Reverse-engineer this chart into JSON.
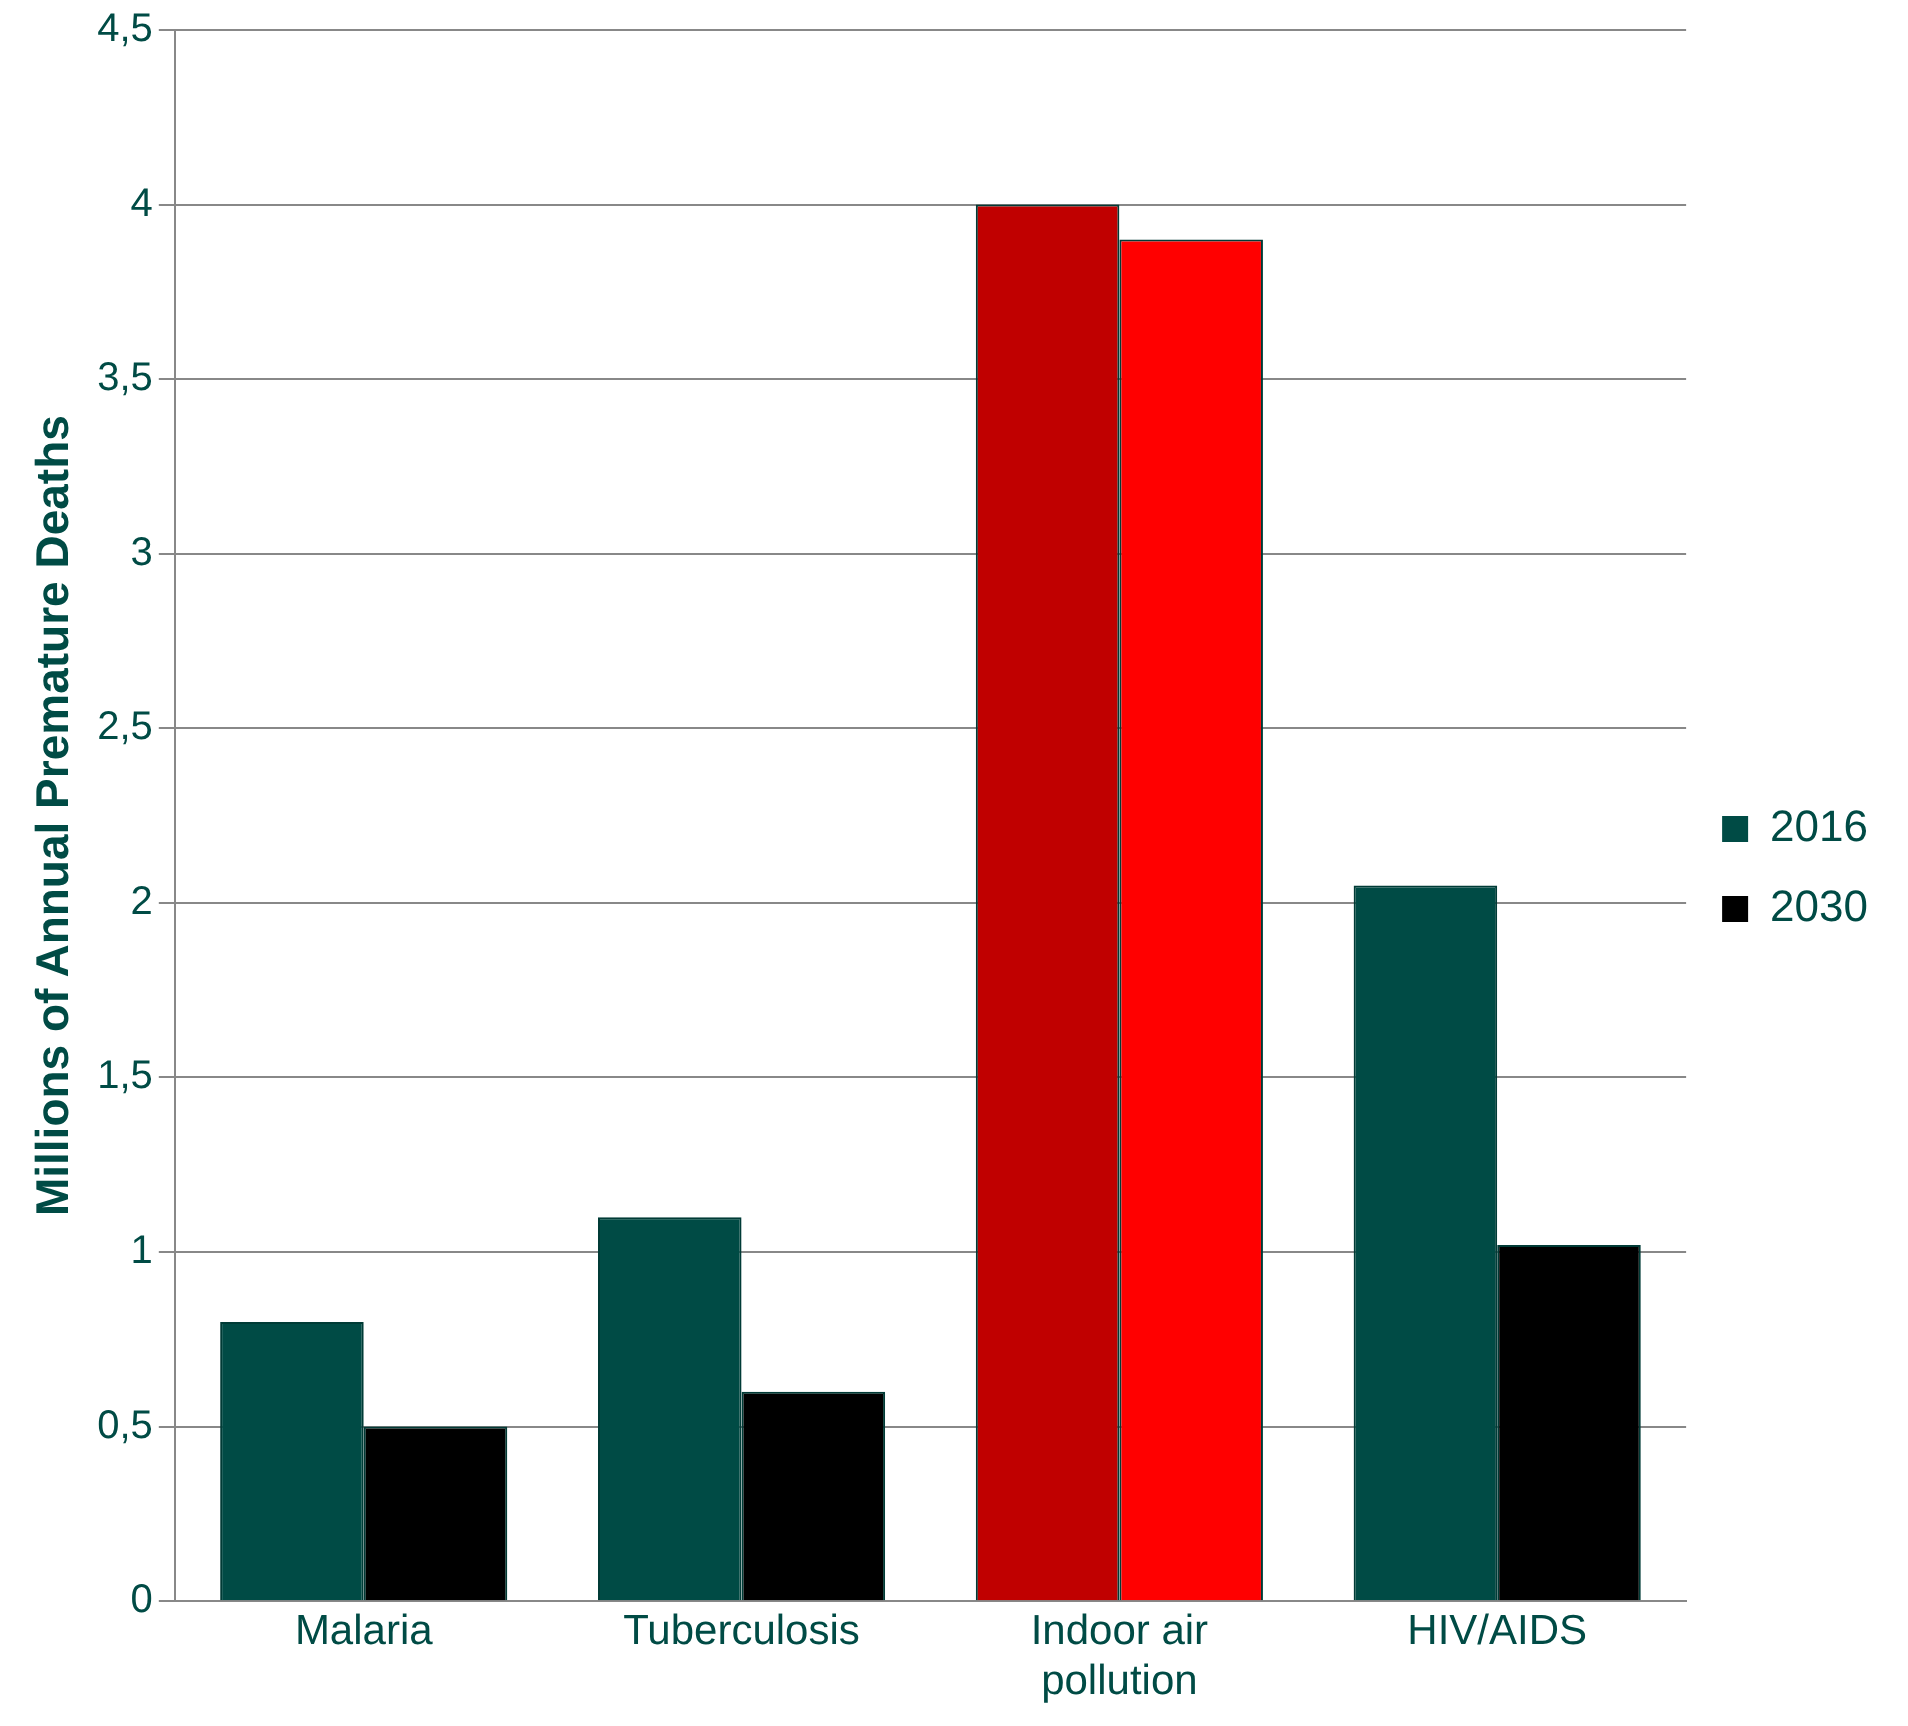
{
  "chart_data": {
    "type": "bar",
    "ylabel": "Millions of Annual Premature Deaths",
    "categories": [
      "Malaria",
      "Tuberculosis",
      "Indoor air pollution",
      "HIV/AIDS"
    ],
    "series": [
      {
        "name": "2016",
        "color": "#004b45",
        "colors": [
          "#004b45",
          "#004b45",
          "#c00000",
          "#004b45"
        ],
        "values": [
          0.8,
          1.1,
          4.0,
          2.05
        ]
      },
      {
        "name": "2030",
        "color": "#000000",
        "colors": [
          "#000000",
          "#000000",
          "#ff0000",
          "#000000"
        ],
        "values": [
          0.5,
          0.6,
          3.9,
          1.02
        ]
      }
    ],
    "ylim": [
      0,
      4.5
    ],
    "yticks": [
      0,
      {
        "value": 0.5,
        "label": "0,5"
      },
      1,
      {
        "value": 1.5,
        "label": "1,5"
      },
      2,
      {
        "value": 2.5,
        "label": "2,5"
      },
      3,
      {
        "value": 3.5,
        "label": "3,5"
      },
      4,
      {
        "value": 4.5,
        "label": "4,5"
      }
    ],
    "grid": "y",
    "legend": "right"
  }
}
